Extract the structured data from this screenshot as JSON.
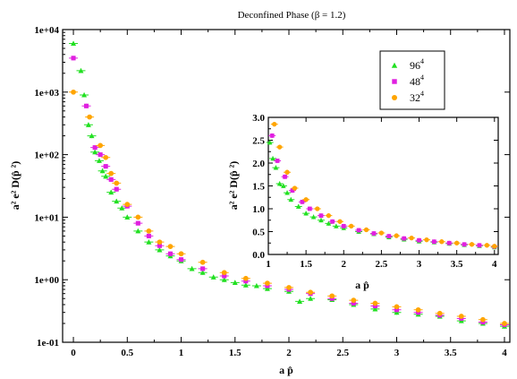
{
  "chart_data": [
    {
      "type": "scatter",
      "title": "Deconfined Phase (β = 1.2)",
      "xlabel": "a p̂",
      "ylabel": "a² e² D(p̂ ²)",
      "xlim": [
        -0.1,
        4.05
      ],
      "ylim": [
        0.1,
        10000
      ],
      "yscale": "log",
      "xticks": [
        "0",
        "0.5",
        "1",
        "1.5",
        "2",
        "2.5",
        "3",
        "3.5",
        "4"
      ],
      "yticks": [
        "1e-01",
        "1e+00",
        "1e+01",
        "1e+02",
        "1e+03",
        "1e+04"
      ],
      "legend": {
        "position": "top-right",
        "entries": [
          "96",
          "48",
          "32"
        ],
        "superscript": "4"
      },
      "series": [
        {
          "name": "96⁴",
          "color": "#22e022",
          "marker": "triangle",
          "x": [
            0,
            0.07,
            0.1,
            0.14,
            0.17,
            0.2,
            0.24,
            0.27,
            0.3,
            0.35,
            0.4,
            0.45,
            0.5,
            0.6,
            0.7,
            0.8,
            0.9,
            1.0,
            1.1,
            1.2,
            1.3,
            1.4,
            1.5,
            1.6,
            1.7,
            1.8,
            2.0,
            2.1,
            2.2,
            2.4,
            2.6,
            2.8,
            3.0,
            3.2,
            3.4,
            3.6,
            3.8,
            4.0
          ],
          "y": [
            6000,
            2200,
            900,
            300,
            200,
            110,
            80,
            55,
            45,
            25,
            18,
            14,
            10,
            6,
            4,
            3,
            2.4,
            2,
            1.5,
            1.3,
            1.1,
            1.0,
            0.9,
            0.82,
            0.8,
            0.72,
            0.65,
            0.45,
            0.5,
            0.48,
            0.4,
            0.34,
            0.3,
            0.28,
            0.26,
            0.22,
            0.2,
            0.18
          ]
        },
        {
          "name": "48⁴",
          "color": "#e020e0",
          "marker": "square",
          "x": [
            0,
            0.12,
            0.2,
            0.25,
            0.3,
            0.35,
            0.4,
            0.5,
            0.6,
            0.7,
            0.8,
            0.9,
            1.0,
            1.2,
            1.4,
            1.6,
            1.8,
            2.0,
            2.2,
            2.4,
            2.6,
            2.8,
            3.0,
            3.2,
            3.4,
            3.6,
            3.8,
            4.0
          ],
          "y": [
            3500,
            600,
            130,
            100,
            65,
            40,
            28,
            15,
            8,
            5,
            3.5,
            2.6,
            2.1,
            1.5,
            1.15,
            0.95,
            0.8,
            0.7,
            0.6,
            0.5,
            0.42,
            0.38,
            0.33,
            0.3,
            0.27,
            0.24,
            0.21,
            0.19
          ]
        },
        {
          "name": "32⁴",
          "color": "#ffa500",
          "marker": "circle",
          "x": [
            0,
            0.15,
            0.25,
            0.3,
            0.35,
            0.4,
            0.5,
            0.6,
            0.7,
            0.8,
            0.9,
            1.0,
            1.2,
            1.4,
            1.6,
            1.8,
            2.0,
            2.2,
            2.4,
            2.6,
            2.8,
            3.0,
            3.2,
            3.4,
            3.6,
            3.8,
            4.0
          ],
          "y": [
            1000,
            400,
            140,
            90,
            50,
            35,
            16,
            10,
            6,
            4,
            3.4,
            2.6,
            1.9,
            1.3,
            1.05,
            0.88,
            0.75,
            0.63,
            0.55,
            0.47,
            0.42,
            0.37,
            0.33,
            0.29,
            0.26,
            0.23,
            0.2
          ]
        }
      ]
    },
    {
      "type": "scatter",
      "title": "",
      "xlabel": "a p̂",
      "ylabel": "a² e² D(p̂ ²)",
      "xlim": [
        1,
        4.05
      ],
      "ylim": [
        0,
        3.0
      ],
      "xticks": [
        "1",
        "1.5",
        "2",
        "2.5",
        "3",
        "3.5",
        "4"
      ],
      "yticks": [
        "0.0",
        "0.5",
        "1.0",
        "1.5",
        "2.0",
        "2.5",
        "3.0"
      ],
      "series": [
        {
          "name": "96⁴",
          "color": "#22e022",
          "marker": "triangle",
          "x": [
            1.02,
            1.06,
            1.1,
            1.15,
            1.2,
            1.25,
            1.3,
            1.4,
            1.5,
            1.6,
            1.7,
            1.8,
            1.9,
            2.0,
            2.2,
            2.4,
            2.6,
            2.8,
            3.0,
            3.2,
            3.4,
            3.6,
            3.8,
            4.0
          ],
          "y": [
            2.45,
            2.1,
            1.9,
            1.55,
            1.5,
            1.35,
            1.2,
            1.05,
            0.9,
            0.82,
            0.75,
            0.68,
            0.62,
            0.58,
            0.5,
            0.45,
            0.38,
            0.33,
            0.29,
            0.27,
            0.24,
            0.21,
            0.19,
            0.16
          ]
        },
        {
          "name": "48⁴",
          "color": "#e020e0",
          "marker": "square",
          "x": [
            1.05,
            1.12,
            1.22,
            1.32,
            1.45,
            1.55,
            1.7,
            1.85,
            2.0,
            2.2,
            2.4,
            2.6,
            2.8,
            3.0,
            3.2,
            3.4,
            3.6,
            3.8,
            4.0
          ],
          "y": [
            2.6,
            2.05,
            1.7,
            1.4,
            1.15,
            1.0,
            0.85,
            0.72,
            0.62,
            0.53,
            0.46,
            0.4,
            0.35,
            0.31,
            0.28,
            0.25,
            0.22,
            0.2,
            0.17
          ]
        },
        {
          "name": "32⁴",
          "color": "#ffa500",
          "marker": "circle",
          "x": [
            1.08,
            1.15,
            1.25,
            1.35,
            1.5,
            1.65,
            1.8,
            1.95,
            2.1,
            2.3,
            2.5,
            2.7,
            2.9,
            3.1,
            3.3,
            3.5,
            3.7,
            3.9,
            4.0
          ],
          "y": [
            2.85,
            2.35,
            1.8,
            1.45,
            1.2,
            1.0,
            0.85,
            0.72,
            0.62,
            0.54,
            0.47,
            0.41,
            0.36,
            0.32,
            0.28,
            0.25,
            0.22,
            0.2,
            0.18
          ]
        }
      ]
    }
  ]
}
